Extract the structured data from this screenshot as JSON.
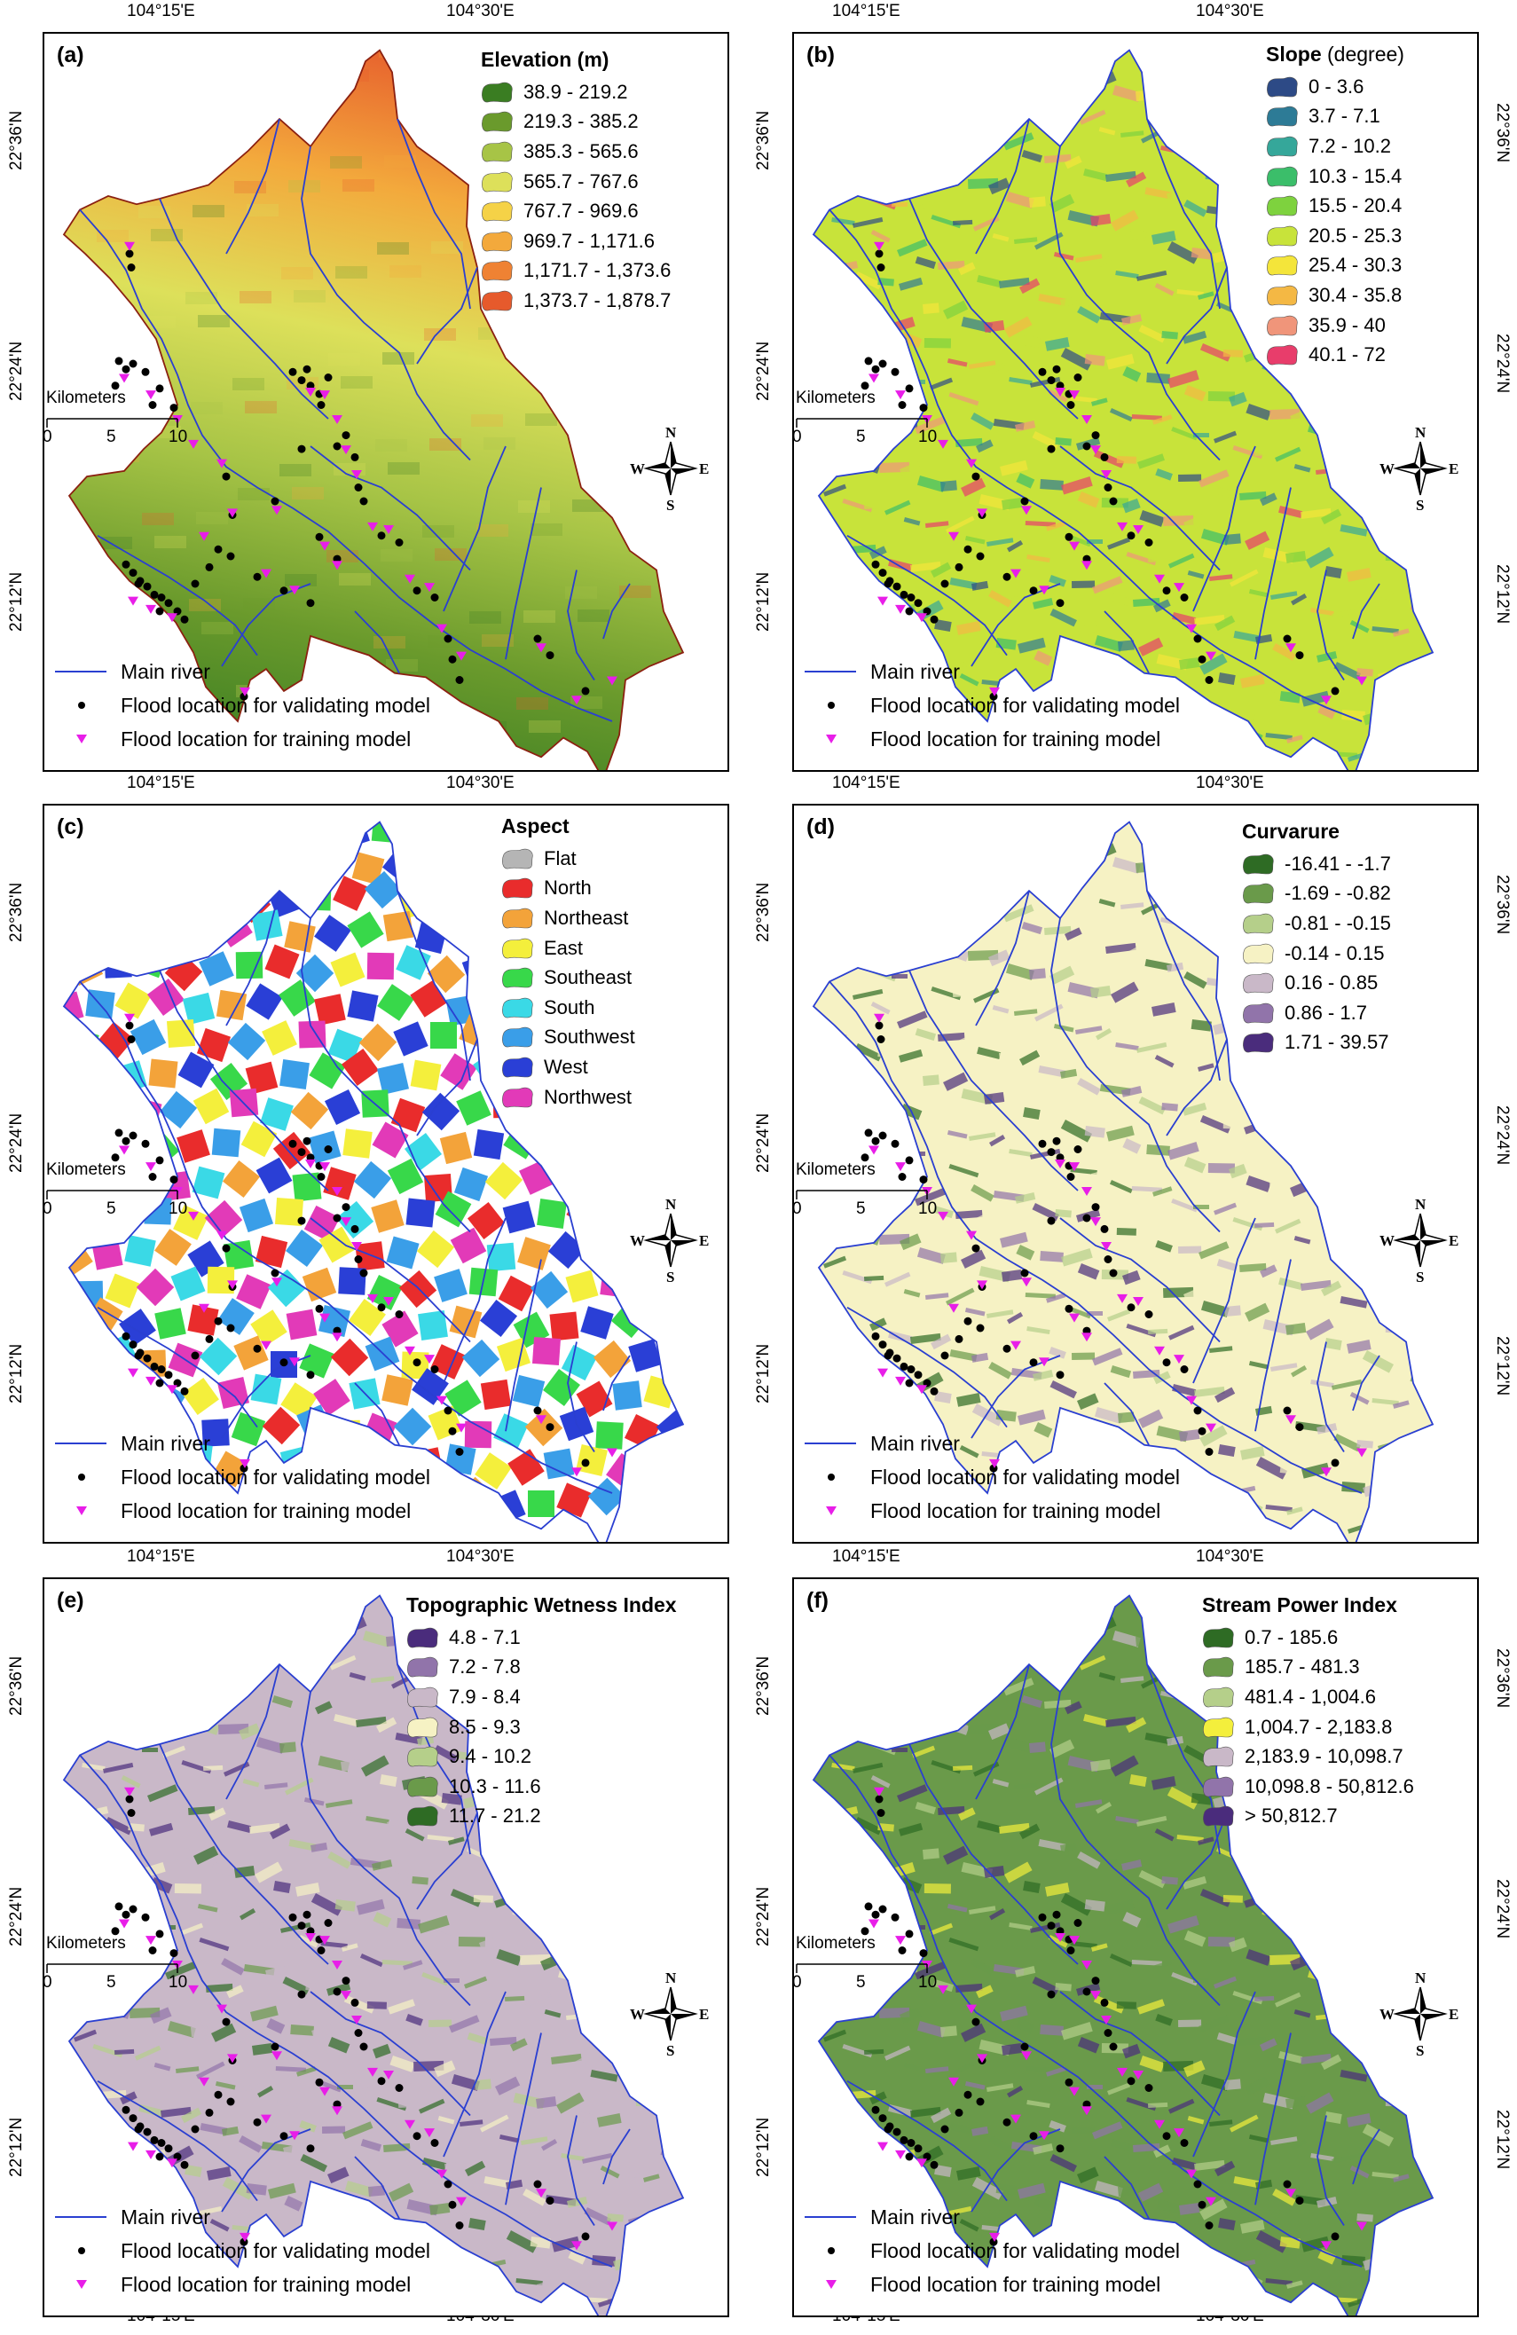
{
  "coords": {
    "lon_15": "104°15'E",
    "lon_30": "104°30'E",
    "lat_36": "22°36'N",
    "lat_24": "22°24'N",
    "lat_12": "22°12'N"
  },
  "common": {
    "scale_title": "Kilometers",
    "scale_ticks": [
      "0",
      "5",
      "10"
    ],
    "north": {
      "n": "N",
      "s": "S",
      "e": "E",
      "w": "W"
    },
    "legend": {
      "river": "Main river",
      "validating": "Flood location for validating model",
      "training": "Flood location for training model"
    },
    "colors": {
      "river": "#2a3fd1",
      "validating": "#000000",
      "training": "#e81ee8",
      "boundary": "#8b2010"
    }
  },
  "panels": [
    {
      "label": "(a)",
      "title": "Elevation",
      "unit": "(m)",
      "classes": [
        {
          "label": "38.9 - 219.2",
          "color": "#3a7d22"
        },
        {
          "label": "219.3 - 385.2",
          "color": "#6a9a2c"
        },
        {
          "label": "385.3 - 565.6",
          "color": "#a7c446"
        },
        {
          "label": "565.7 - 767.6",
          "color": "#dde05a"
        },
        {
          "label": "767.7 - 969.6",
          "color": "#f5d247"
        },
        {
          "label": "969.7 - 1,171.6",
          "color": "#f3a93c"
        },
        {
          "label": "1,171.7 - 1,373.6",
          "color": "#ef8233"
        },
        {
          "label": "1,373.7 - 1,878.7",
          "color": "#e65a2c"
        }
      ]
    },
    {
      "label": "(b)",
      "title": "Slope",
      "unit": "(degree)",
      "classes": [
        {
          "label": "0 - 3.6",
          "color": "#2d4a86"
        },
        {
          "label": "3.7 - 7.1",
          "color": "#2d7b96"
        },
        {
          "label": "7.2 - 10.2",
          "color": "#35a79a"
        },
        {
          "label": "10.3 - 15.4",
          "color": "#3bbe6a"
        },
        {
          "label": "15.5 - 20.4",
          "color": "#7ed23e"
        },
        {
          "label": "20.5 - 25.3",
          "color": "#c8e33a"
        },
        {
          "label": "25.4 - 30.3",
          "color": "#f4e53a"
        },
        {
          "label": "30.4 - 35.8",
          "color": "#f4b844"
        },
        {
          "label": "35.9 - 40",
          "color": "#f0957a"
        },
        {
          "label": "40.1 - 72",
          "color": "#e83d6b"
        }
      ]
    },
    {
      "label": "(c)",
      "title": "Aspect",
      "unit": "",
      "classes": [
        {
          "label": "Flat",
          "color": "#b5b5b5"
        },
        {
          "label": "North",
          "color": "#e92c2c"
        },
        {
          "label": "Northeast",
          "color": "#f3a33a"
        },
        {
          "label": "East",
          "color": "#f4ef3c"
        },
        {
          "label": "Southeast",
          "color": "#38d84a"
        },
        {
          "label": "South",
          "color": "#3ad9e6"
        },
        {
          "label": "Southwest",
          "color": "#3a9ee8"
        },
        {
          "label": "West",
          "color": "#2a3fd6"
        },
        {
          "label": "Northwest",
          "color": "#e23ab8"
        }
      ]
    },
    {
      "label": "(d)",
      "title": "Curvarure",
      "unit": "",
      "classes": [
        {
          "label": "-16.41 - -1.7",
          "color": "#2e6b24"
        },
        {
          "label": "-1.69 - -0.82",
          "color": "#6a9a4a"
        },
        {
          "label": "-0.81 - -0.15",
          "color": "#b5cf8a"
        },
        {
          "label": "-0.14 - 0.15",
          "color": "#f6f2c4"
        },
        {
          "label": "0.16 - 0.85",
          "color": "#c9b8c8"
        },
        {
          "label": "0.86 - 1.7",
          "color": "#9174aa"
        },
        {
          "label": "1.71 - 39.57",
          "color": "#4a2c7c"
        }
      ]
    },
    {
      "label": "(e)",
      "title": "Topographic Wetness Index",
      "unit": "",
      "classes": [
        {
          "label": "4.8 - 7.1",
          "color": "#4a2c7c"
        },
        {
          "label": "7.2 - 7.8",
          "color": "#9174aa"
        },
        {
          "label": "7.9 - 8.4",
          "color": "#c9b8c8"
        },
        {
          "label": "8.5 - 9.3",
          "color": "#f6f2c4"
        },
        {
          "label": "9.4 - 10.2",
          "color": "#b5cf8a"
        },
        {
          "label": "10.3 - 11.6",
          "color": "#6a9a4a"
        },
        {
          "label": "11.7 - 21.2",
          "color": "#2e6b24"
        }
      ]
    },
    {
      "label": "(f)",
      "title": "Stream Power Index",
      "unit": "",
      "classes": [
        {
          "label": "0.7 - 185.6",
          "color": "#2e6b24"
        },
        {
          "label": "185.7 - 481.3",
          "color": "#6a9a4a"
        },
        {
          "label": "481.4 - 1,004.6",
          "color": "#b5cf8a"
        },
        {
          "label": "1,004.7 - 2,183.8",
          "color": "#f4ef3c"
        },
        {
          "label": "2,183.9 - 10,098.7",
          "color": "#c9b8c8"
        },
        {
          "label": "10,098.8 - 50,812.6",
          "color": "#9174aa"
        },
        {
          "label": "> 50,812.7",
          "color": "#4a2c7c"
        }
      ]
    }
  ]
}
